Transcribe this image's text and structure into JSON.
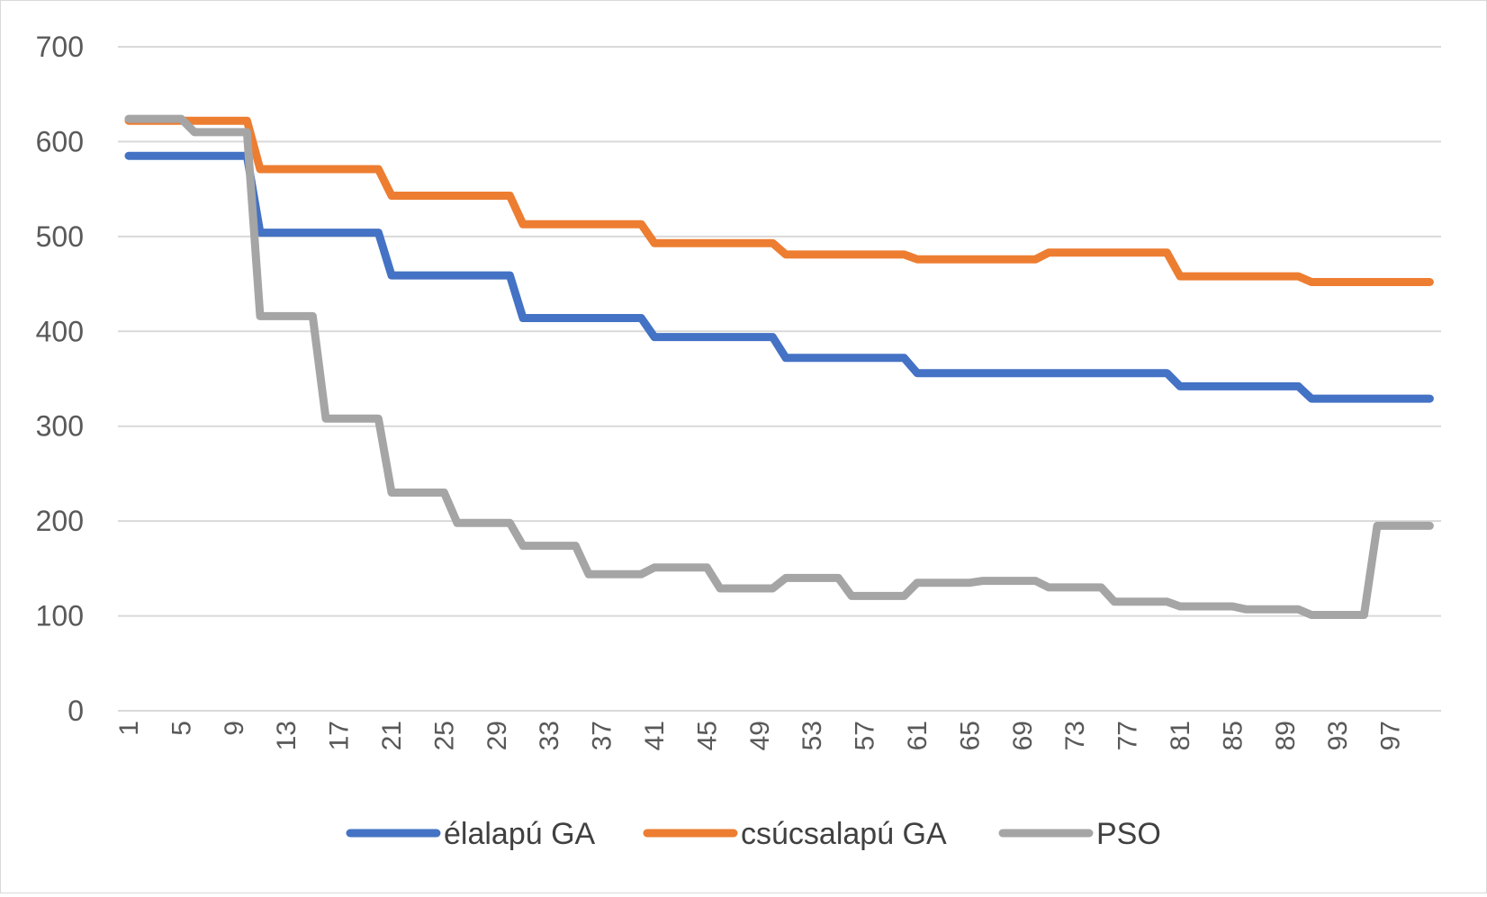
{
  "chart_data": {
    "type": "line",
    "title": "",
    "xlabel": "",
    "ylabel": "",
    "ylim": [
      0,
      700
    ],
    "yticks": [
      0,
      100,
      200,
      300,
      400,
      500,
      600,
      700
    ],
    "grid": true,
    "legend_position": "bottom",
    "x_tick_labels": [
      "1",
      "5",
      "9",
      "13",
      "17",
      "21",
      "25",
      "29",
      "33",
      "37",
      "41",
      "45",
      "49",
      "53",
      "57",
      "61",
      "65",
      "69",
      "73",
      "77",
      "81",
      "85",
      "89",
      "93",
      "97"
    ],
    "series": [
      {
        "name": "élalapú GA",
        "color": "#4472c4",
        "points": [
          [
            1,
            585
          ],
          [
            10,
            585
          ],
          [
            11,
            504
          ],
          [
            20,
            504
          ],
          [
            21,
            459
          ],
          [
            30,
            459
          ],
          [
            31,
            414
          ],
          [
            40,
            414
          ],
          [
            41,
            394
          ],
          [
            50,
            394
          ],
          [
            51,
            372
          ],
          [
            60,
            372
          ],
          [
            61,
            356
          ],
          [
            80,
            356
          ],
          [
            81,
            342
          ],
          [
            90,
            342
          ],
          [
            91,
            329
          ],
          [
            100,
            329
          ]
        ]
      },
      {
        "name": "csúcsalapú GA",
        "color": "#ed7d31",
        "points": [
          [
            1,
            622
          ],
          [
            10,
            622
          ],
          [
            11,
            571
          ],
          [
            20,
            571
          ],
          [
            21,
            543
          ],
          [
            30,
            543
          ],
          [
            31,
            513
          ],
          [
            40,
            513
          ],
          [
            41,
            493
          ],
          [
            50,
            493
          ],
          [
            51,
            481
          ],
          [
            60,
            481
          ],
          [
            61,
            476
          ],
          [
            70,
            476
          ],
          [
            71,
            483
          ],
          [
            80,
            483
          ],
          [
            81,
            458
          ],
          [
            90,
            458
          ],
          [
            91,
            452
          ],
          [
            100,
            452
          ]
        ]
      },
      {
        "name": "PSO",
        "color": "#a5a5a5",
        "points": [
          [
            1,
            624
          ],
          [
            5,
            624
          ],
          [
            6,
            610
          ],
          [
            10,
            610
          ],
          [
            11,
            416
          ],
          [
            15,
            416
          ],
          [
            16,
            308
          ],
          [
            20,
            308
          ],
          [
            21,
            230
          ],
          [
            25,
            230
          ],
          [
            26,
            198
          ],
          [
            30,
            198
          ],
          [
            31,
            174
          ],
          [
            35,
            174
          ],
          [
            36,
            144
          ],
          [
            40,
            144
          ],
          [
            41,
            151
          ],
          [
            45,
            151
          ],
          [
            46,
            129
          ],
          [
            50,
            129
          ],
          [
            51,
            140
          ],
          [
            55,
            140
          ],
          [
            56,
            121
          ],
          [
            60,
            121
          ],
          [
            61,
            135
          ],
          [
            65,
            135
          ],
          [
            66,
            137
          ],
          [
            70,
            137
          ],
          [
            71,
            130
          ],
          [
            75,
            130
          ],
          [
            76,
            115
          ],
          [
            80,
            115
          ],
          [
            81,
            110
          ],
          [
            85,
            110
          ],
          [
            86,
            107
          ],
          [
            90,
            107
          ],
          [
            91,
            101
          ],
          [
            95,
            101
          ],
          [
            96,
            195
          ],
          [
            100,
            195
          ]
        ]
      }
    ]
  }
}
